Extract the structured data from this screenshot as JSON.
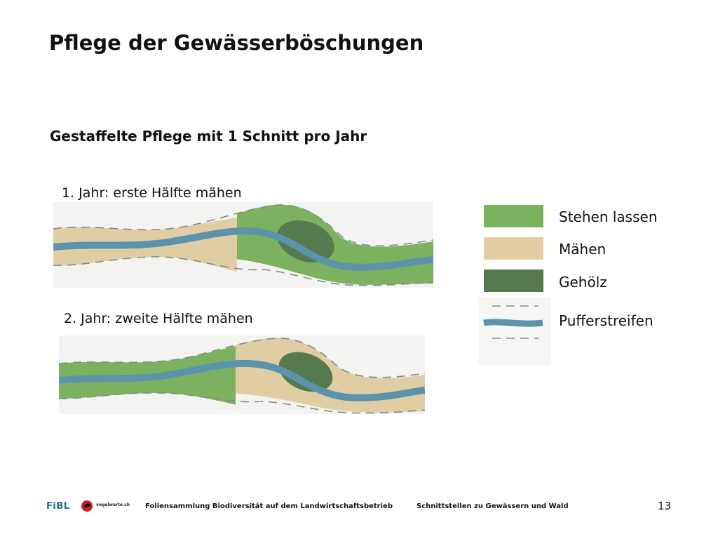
{
  "slide": {
    "title": "Pflege der Gewässerböschungen",
    "subtitle": "Gestaffelte Pflege mit 1 Schnitt pro Jahr",
    "page_number": "13"
  },
  "steps": [
    {
      "label": "1. Jahr: erste Hälfte mähen"
    },
    {
      "label": "2. Jahr: zweite Hälfte mähen"
    }
  ],
  "legend": [
    {
      "label": "Stehen lassen",
      "color": "#7cb25f"
    },
    {
      "label": "Mähen",
      "color": "#e0cda3"
    },
    {
      "label": "Gehölz",
      "color": "#547a4d"
    },
    {
      "label": "Pufferstreifen",
      "color": "#5b93ad"
    }
  ],
  "footer": {
    "left_text": "Foliensammlung Biodiversität auf dem Landwirtschaftsbetrieb",
    "right_text": "Schnittstellen zu Gewässern und Wald",
    "logo_fibl": "FiBL",
    "logo_bird_text": "vogelwarte.ch"
  },
  "colors": {
    "green_meadow": "#7cb25f",
    "mowed_beige": "#e0cda3",
    "woody_dark": "#547a4d",
    "river_blue": "#5b93ad",
    "buffer_dash": "#8a8a8a"
  }
}
